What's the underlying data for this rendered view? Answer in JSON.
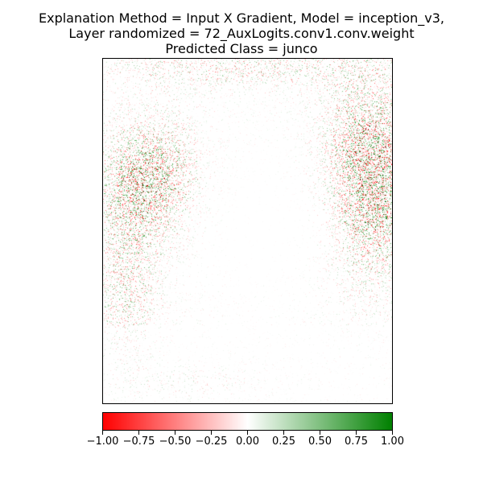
{
  "title": {
    "line1": "Explanation Method = Input X Gradient, Model = inception_v3,",
    "line2": "Layer randomized = 72_AuxLogits.conv1.conv.weight",
    "line3": "Predicted Class = junco"
  },
  "colorbar": {
    "min": -1.0,
    "max": 1.0,
    "colors": {
      "negative": "#ff0000",
      "zero": "#ffffff",
      "positive": "#008000"
    },
    "ticks": [
      "−1.00",
      "−0.75",
      "−0.50",
      "−0.25",
      "0.00",
      "0.25",
      "0.50",
      "0.75",
      "1.00"
    ],
    "tick_values": [
      -1.0,
      -0.75,
      -0.5,
      -0.25,
      0.0,
      0.25,
      0.5,
      0.75,
      1.0
    ]
  }
}
